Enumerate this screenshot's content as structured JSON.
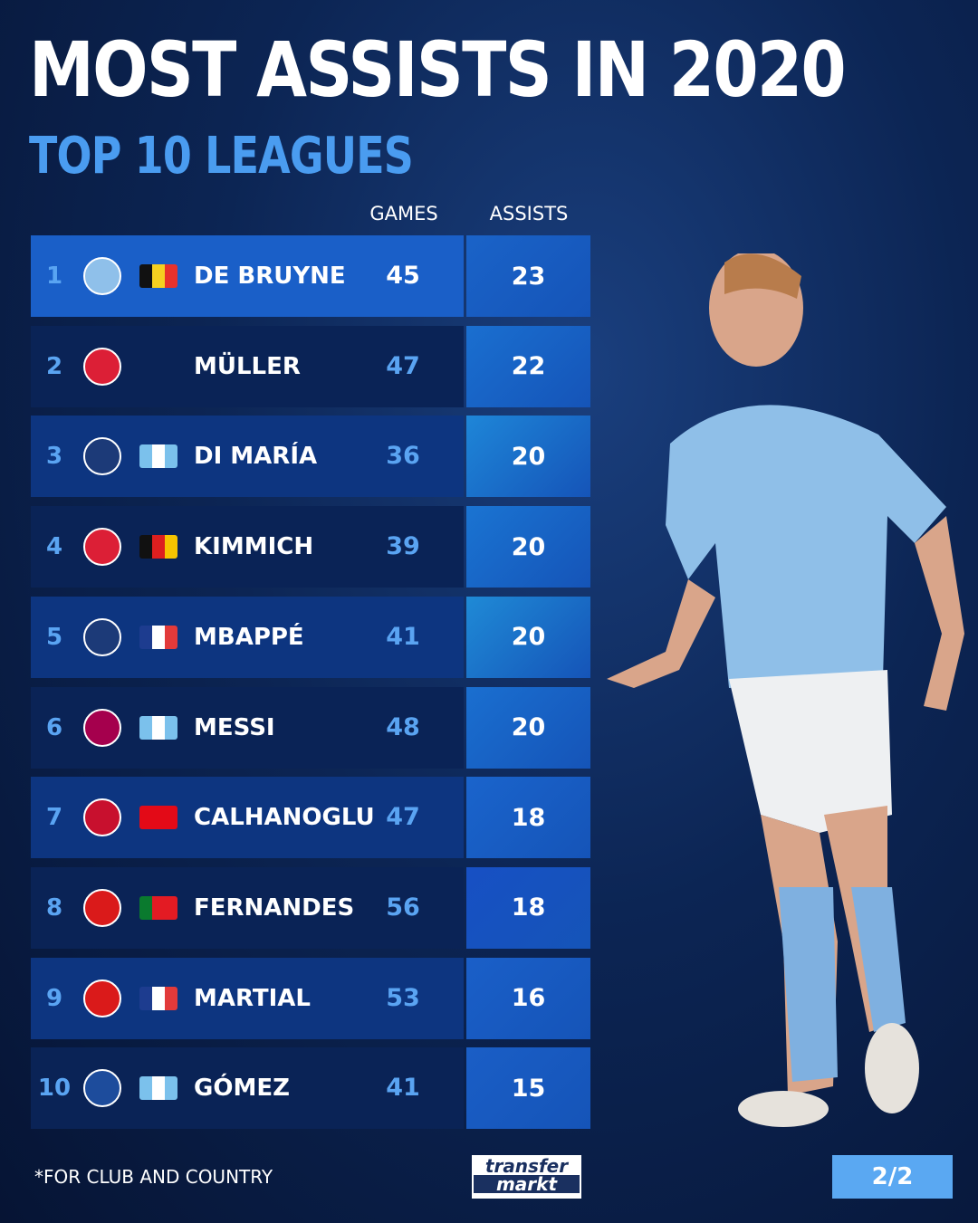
{
  "header": {
    "title": "MOST ASSISTS IN 2020",
    "subtitle": "TOP 10 LEAGUES"
  },
  "chart_data": {
    "type": "table",
    "columns": [
      "GAMES",
      "ASSISTS"
    ],
    "rows": [
      {
        "rank": "1",
        "club": "Manchester City",
        "flag": "Belgium",
        "name": "DE BRUYNE",
        "games": 45,
        "assists": 23
      },
      {
        "rank": "2",
        "club": "FC Bayern München",
        "flag": "",
        "name": "MÜLLER",
        "games": 47,
        "assists": 22
      },
      {
        "rank": "3",
        "club": "Paris Saint-Germain",
        "flag": "Argentina",
        "name": "DI MARÍA",
        "games": 36,
        "assists": 20
      },
      {
        "rank": "4",
        "club": "FC Bayern München",
        "flag": "Germany",
        "name": "KIMMICH",
        "games": 39,
        "assists": 20
      },
      {
        "rank": "5",
        "club": "Paris Saint-Germain",
        "flag": "France",
        "name": "MBAPPÉ",
        "games": 41,
        "assists": 20
      },
      {
        "rank": "6",
        "club": "FC Barcelona",
        "flag": "Argentina",
        "name": "MESSI",
        "games": 48,
        "assists": 20
      },
      {
        "rank": "7",
        "club": "AC Milan",
        "flag": "Turkey",
        "name": "CALHANOGLU",
        "games": 47,
        "assists": 18
      },
      {
        "rank": "8",
        "club": "Sporting CP / Manchester United",
        "flag": "Portugal",
        "name": "FERNANDES",
        "games": 56,
        "assists": 18
      },
      {
        "rank": "9",
        "club": "Manchester United",
        "flag": "France",
        "name": "MARTIAL",
        "games": 53,
        "assists": 16
      },
      {
        "rank": "10",
        "club": "Atalanta",
        "flag": "Argentina",
        "name": "GÓMEZ",
        "games": 41,
        "assists": 15
      }
    ]
  },
  "footer": {
    "footnote": "*FOR CLUB AND COUNTRY",
    "logo_top": "transfer",
    "logo_bottom": "markt",
    "page": "2/2"
  },
  "colors": {
    "accent": "#4a9cf0",
    "highlight": "#1a5fc8",
    "row_alt": "#0d3580",
    "row_dark": "#0a2356"
  }
}
